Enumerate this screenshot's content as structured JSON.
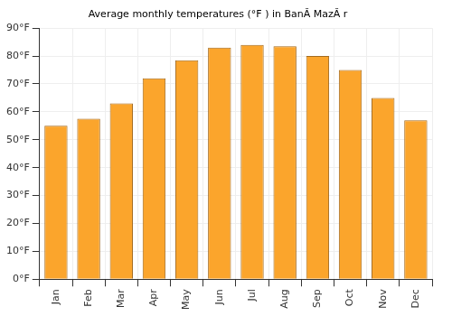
{
  "chart_data": {
    "type": "bar",
    "title": "Average monthly temperatures (°F ) in BanĂ MazĂ r",
    "categories": [
      "Jan",
      "Feb",
      "Mar",
      "Apr",
      "May",
      "Jun",
      "Jul",
      "Aug",
      "Sep",
      "Oct",
      "Nov",
      "Dec"
    ],
    "values": [
      55,
      57.5,
      63,
      72,
      78.5,
      83,
      84,
      83.5,
      80,
      75,
      65,
      57
    ],
    "color": "#fba52c",
    "ylim": [
      0,
      90
    ],
    "yticks": [
      {
        "value": 0,
        "label": "0°F"
      },
      {
        "value": 10,
        "label": "10°F"
      },
      {
        "value": 20,
        "label": "20°F"
      },
      {
        "value": 30,
        "label": "30°F"
      },
      {
        "value": 40,
        "label": "40°F"
      },
      {
        "value": 50,
        "label": "50°F"
      },
      {
        "value": 60,
        "label": "60°F"
      },
      {
        "value": 70,
        "label": "70°F"
      },
      {
        "value": 80,
        "label": "80°F"
      },
      {
        "value": 90,
        "label": "90°F"
      }
    ],
    "grid": true
  }
}
